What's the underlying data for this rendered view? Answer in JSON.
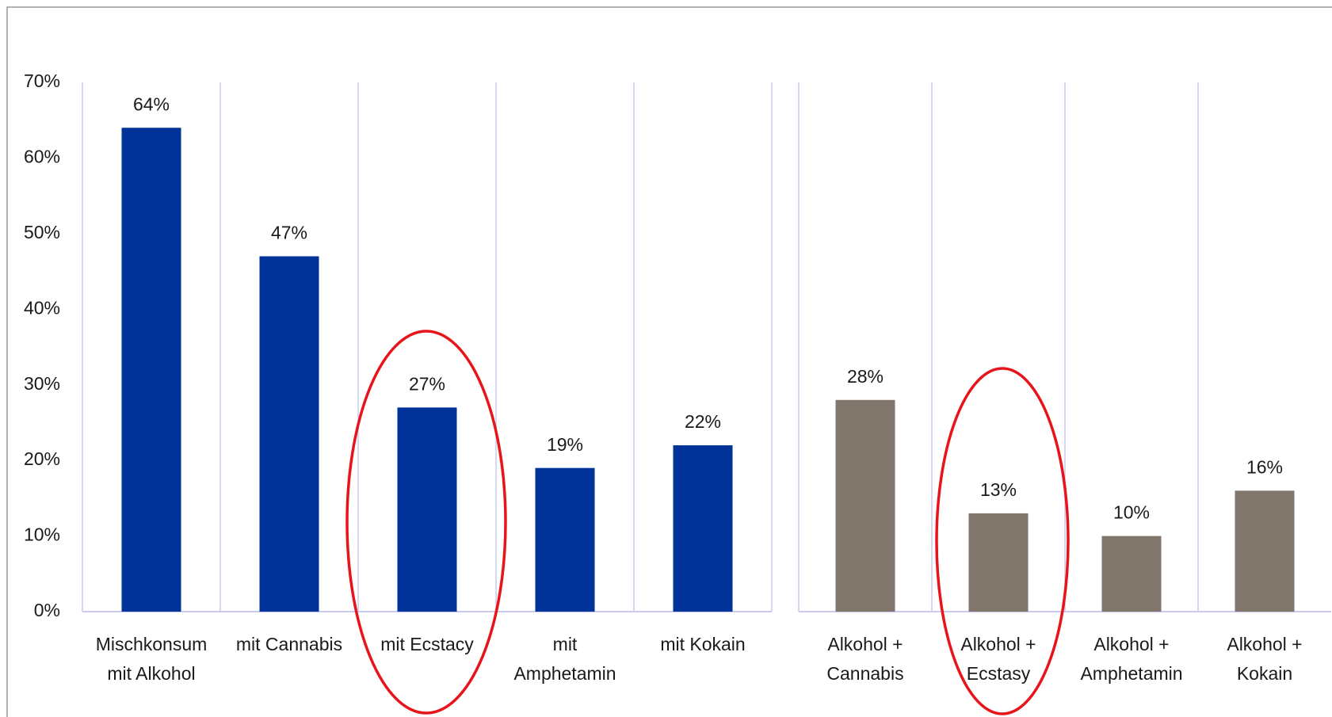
{
  "chart_data": [
    {
      "type": "bar",
      "categories": [
        "Mischkonsum mit Alkohol",
        "mit Cannabis",
        "mit Ecstacy",
        "mit Amphetamin",
        "mit Kokain"
      ],
      "values": [
        64,
        47,
        27,
        19,
        22
      ],
      "value_labels": [
        "64%",
        "47%",
        "27%",
        "19%",
        "22%"
      ],
      "color": "#003399",
      "ylim": [
        0,
        70
      ],
      "yticks": [
        {
          "value": 0,
          "label": "0%"
        },
        {
          "value": 10,
          "label": "10%"
        },
        {
          "value": 20,
          "label": "20%"
        },
        {
          "value": 30,
          "label": "30%"
        },
        {
          "value": 40,
          "label": "40%"
        },
        {
          "value": 50,
          "label": "50%"
        },
        {
          "value": 60,
          "label": "60%"
        },
        {
          "value": 70,
          "label": "70%"
        }
      ],
      "grid": true
    },
    {
      "type": "bar",
      "categories": [
        "Alkohol + Cannabis",
        "Alkohol + Ecstasy",
        "Alkohol + Amphetamin",
        "Alkohol + Kokain"
      ],
      "values": [
        28,
        13,
        10,
        16
      ],
      "value_labels": [
        "28%",
        "13%",
        "10%",
        "16%"
      ],
      "color": "#80766c",
      "ylim": [
        0,
        70
      ],
      "grid": true
    }
  ]
}
